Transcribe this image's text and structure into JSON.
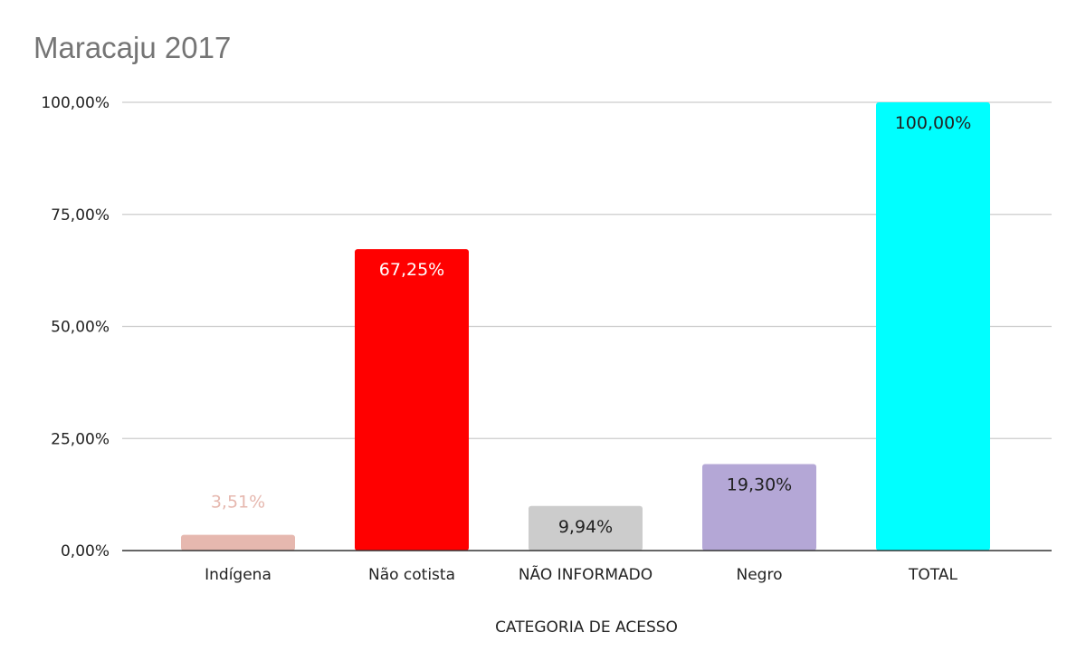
{
  "chart_data": {
    "type": "bar",
    "title": "Maracaju 2017",
    "xlabel": "CATEGORIA DE ACESSO",
    "ylabel": "",
    "ylim": [
      0,
      100
    ],
    "yticks": [
      0,
      25,
      50,
      75,
      100
    ],
    "ytick_labels": [
      "0,00%",
      "25,00%",
      "50,00%",
      "75,00%",
      "100,00%"
    ],
    "grid": true,
    "categories": [
      "Indígena",
      "Não cotista",
      "NÃO INFORMADO",
      "Negro",
      "TOTAL"
    ],
    "values": [
      3.51,
      67.25,
      9.94,
      19.3,
      100.0
    ],
    "data_labels": [
      "3,51%",
      "67,25%",
      "9,94%",
      "19,30%",
      "100,00%"
    ],
    "colors": [
      "#e6b8af",
      "#ff0000",
      "#cccccc",
      "#b4a7d6",
      "#00ffff"
    ],
    "label_colors": [
      "#e6b8af",
      "#ffffff",
      "#222222",
      "#222222",
      "#222222"
    ]
  }
}
